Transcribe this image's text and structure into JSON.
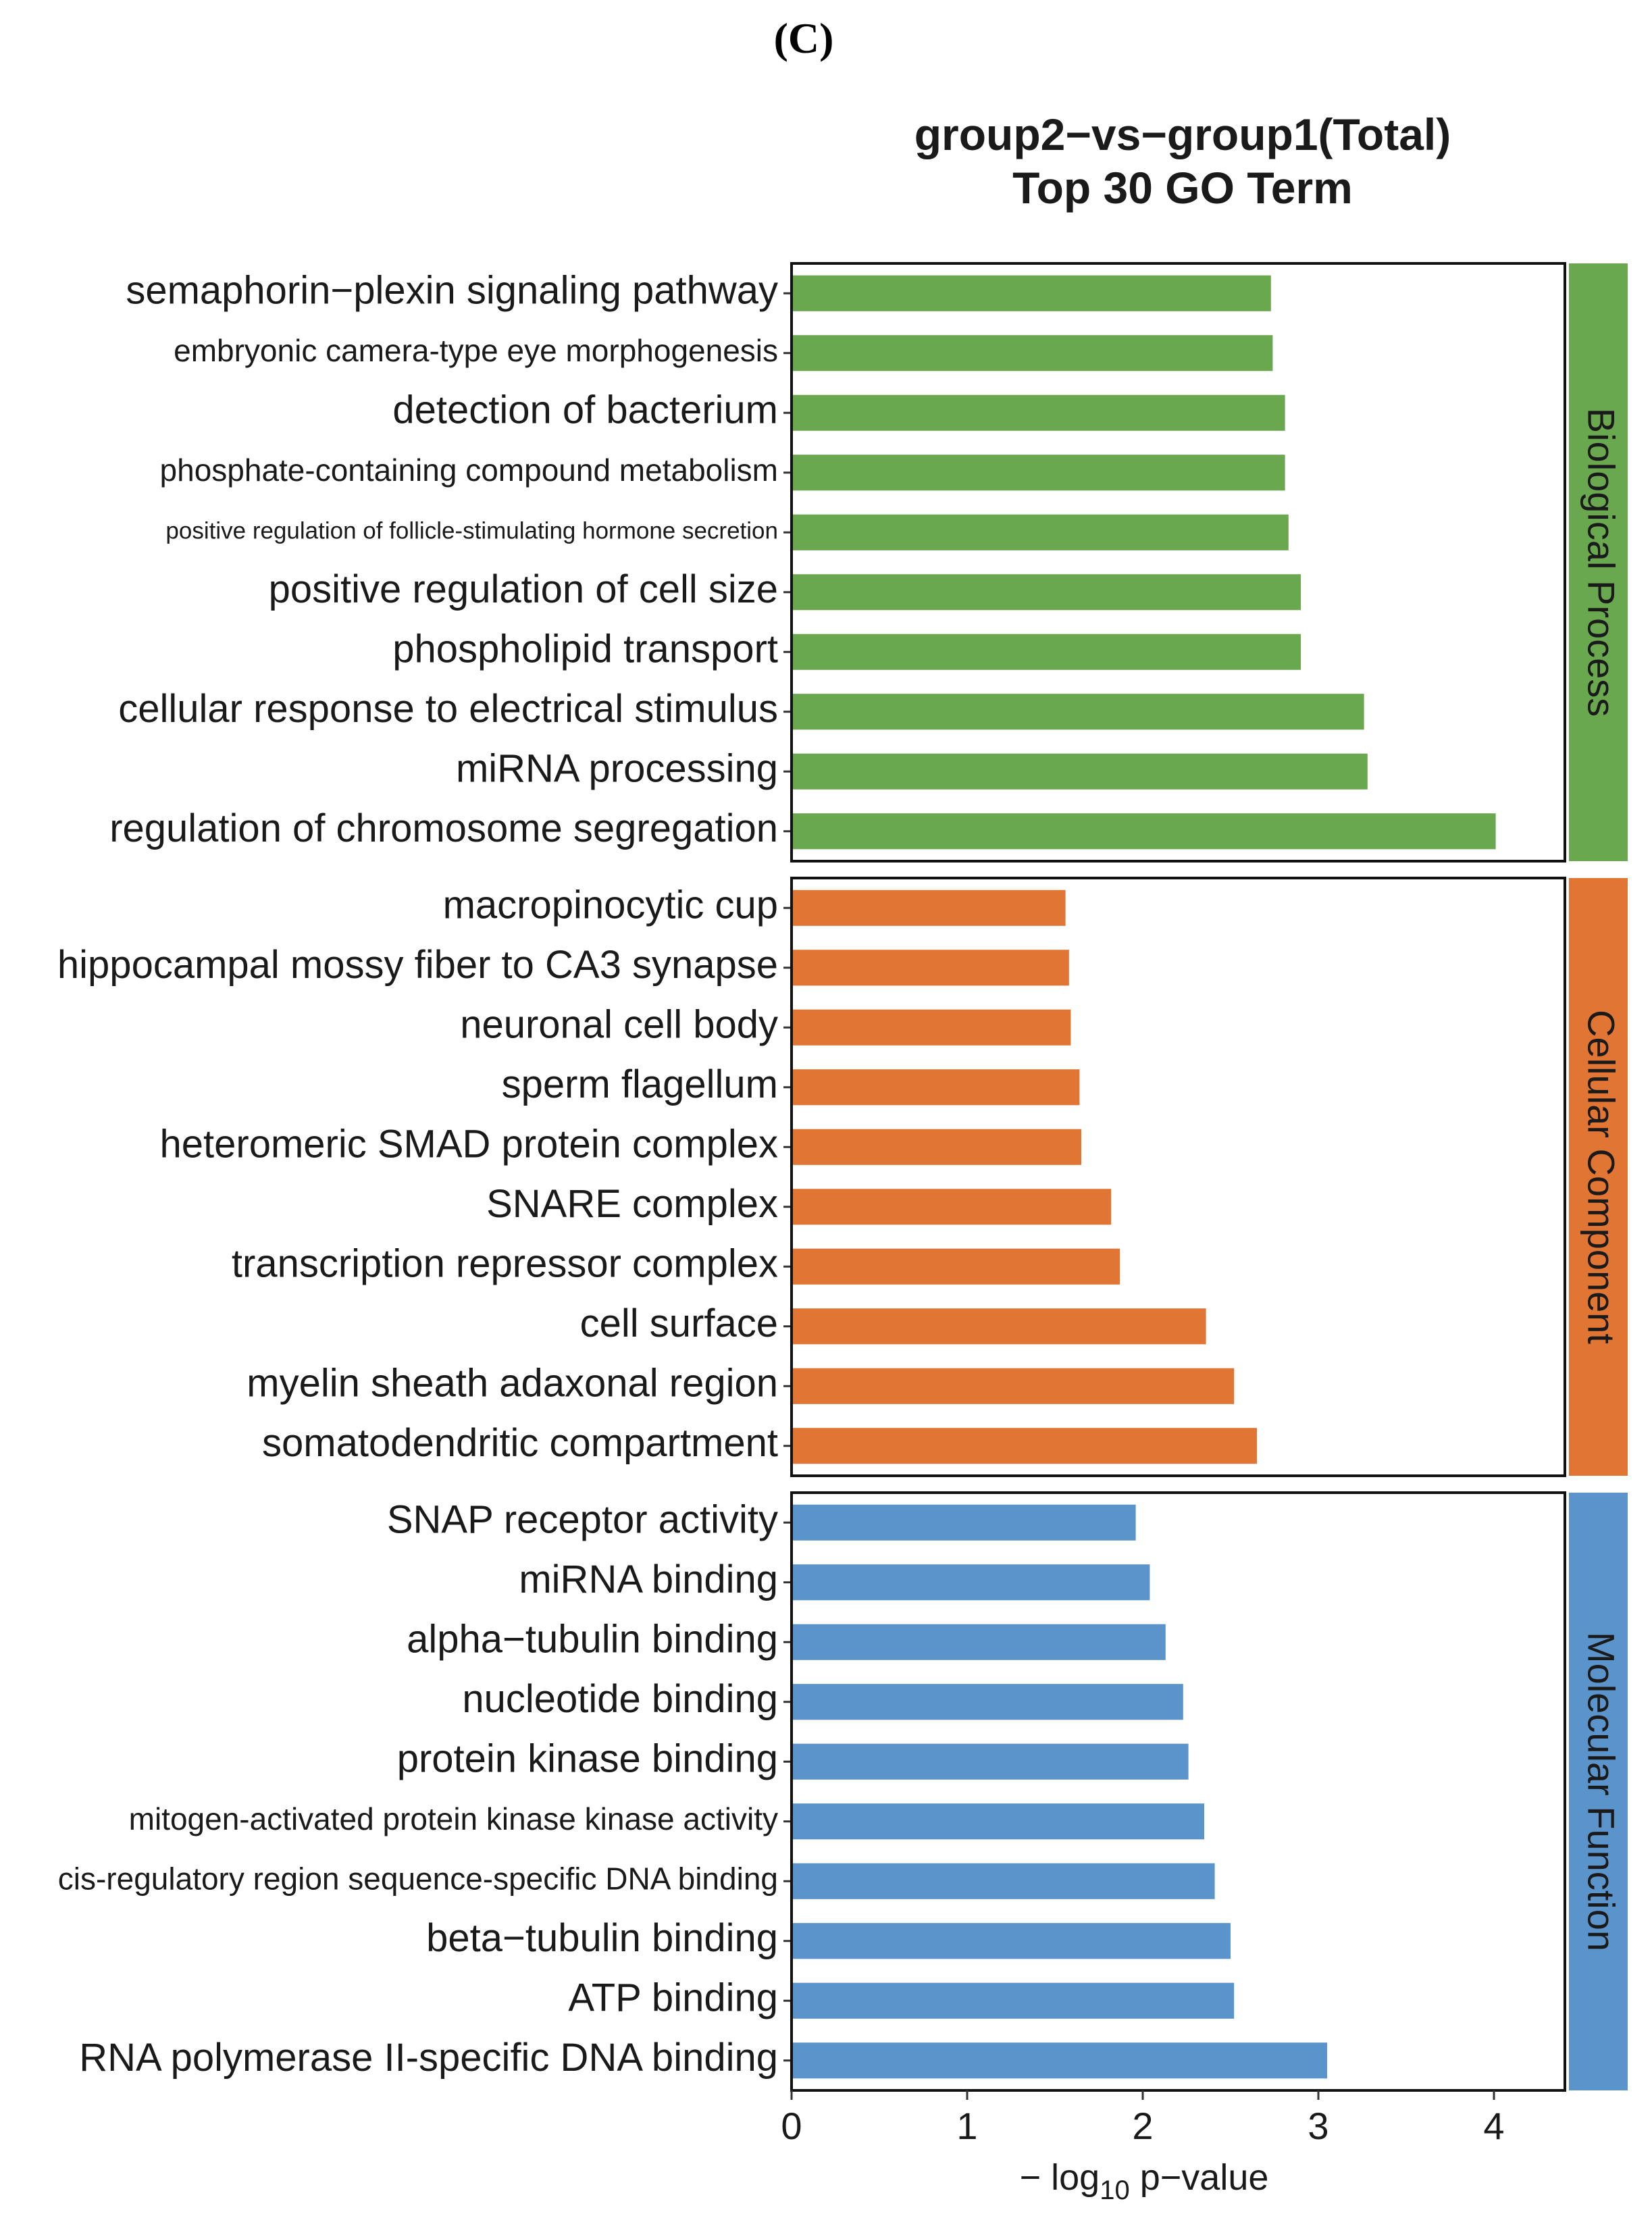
{
  "panel_label": "(C)",
  "chart_data": {
    "type": "bar",
    "orientation": "horizontal",
    "title": "group2−vs−group1(Total)",
    "subtitle": "Top 30 GO Term",
    "xlabel": {
      "prefix": "− log",
      "subscript": "10",
      "suffix": " p−value"
    },
    "xlim": [
      0,
      4.4
    ],
    "xticks": [
      0,
      1,
      2,
      3,
      4
    ],
    "colors": {
      "Biological Process": "#6aa84f",
      "Cellular Component": "#e07534",
      "Molecular Function": "#5b93cb"
    },
    "groups": [
      {
        "name": "Biological Process",
        "terms": [
          {
            "label": "semaphorin−plexin signaling pathway",
            "value": 2.73,
            "size": "large"
          },
          {
            "label": "embryonic camera-type eye morphogenesis",
            "value": 2.74,
            "size": "medium"
          },
          {
            "label": "detection of bacterium",
            "value": 2.81,
            "size": "large"
          },
          {
            "label": "phosphate-containing compound metabolism",
            "value": 2.81,
            "size": "medium"
          },
          {
            "label": "positive regulation of follicle-stimulating hormone secretion",
            "value": 2.83,
            "size": "small"
          },
          {
            "label": "positive regulation of cell size",
            "value": 2.9,
            "size": "large"
          },
          {
            "label": "phospholipid transport",
            "value": 2.9,
            "size": "large"
          },
          {
            "label": "cellular response to electrical stimulus",
            "value": 3.26,
            "size": "large"
          },
          {
            "label": "miRNA processing",
            "value": 3.28,
            "size": "large"
          },
          {
            "label": "regulation of chromosome segregation",
            "value": 4.01,
            "size": "large"
          }
        ]
      },
      {
        "name": "Cellular Component",
        "terms": [
          {
            "label": "macropinocytic cup",
            "value": 1.56,
            "size": "large"
          },
          {
            "label": "hippocampal mossy fiber to CA3 synapse",
            "value": 1.58,
            "size": "large"
          },
          {
            "label": "neuronal cell body",
            "value": 1.59,
            "size": "large"
          },
          {
            "label": "sperm flagellum",
            "value": 1.64,
            "size": "large"
          },
          {
            "label": "heteromeric SMAD protein complex",
            "value": 1.65,
            "size": "large"
          },
          {
            "label": "SNARE complex",
            "value": 1.82,
            "size": "large"
          },
          {
            "label": "transcription repressor complex",
            "value": 1.87,
            "size": "large"
          },
          {
            "label": "cell surface",
            "value": 2.36,
            "size": "large"
          },
          {
            "label": "myelin sheath adaxonal region",
            "value": 2.52,
            "size": "large"
          },
          {
            "label": "somatodendritic compartment",
            "value": 2.65,
            "size": "large"
          }
        ]
      },
      {
        "name": "Molecular Function",
        "terms": [
          {
            "label": "SNAP receptor activity",
            "value": 1.96,
            "size": "large"
          },
          {
            "label": "miRNA binding",
            "value": 2.04,
            "size": "large"
          },
          {
            "label": "alpha−tubulin binding",
            "value": 2.13,
            "size": "large"
          },
          {
            "label": "nucleotide binding",
            "value": 2.23,
            "size": "large"
          },
          {
            "label": "protein kinase binding",
            "value": 2.26,
            "size": "large"
          },
          {
            "label": "mitogen-activated protein kinase kinase activity",
            "value": 2.35,
            "size": "medium"
          },
          {
            "label": "cis-regulatory region sequence-specific DNA binding",
            "value": 2.41,
            "size": "medium"
          },
          {
            "label": "beta−tubulin binding",
            "value": 2.5,
            "size": "large"
          },
          {
            "label": "ATP binding",
            "value": 2.52,
            "size": "large"
          },
          {
            "label": "RNA polymerase II-specific DNA binding",
            "value": 3.05,
            "size": "large"
          }
        ]
      }
    ]
  }
}
